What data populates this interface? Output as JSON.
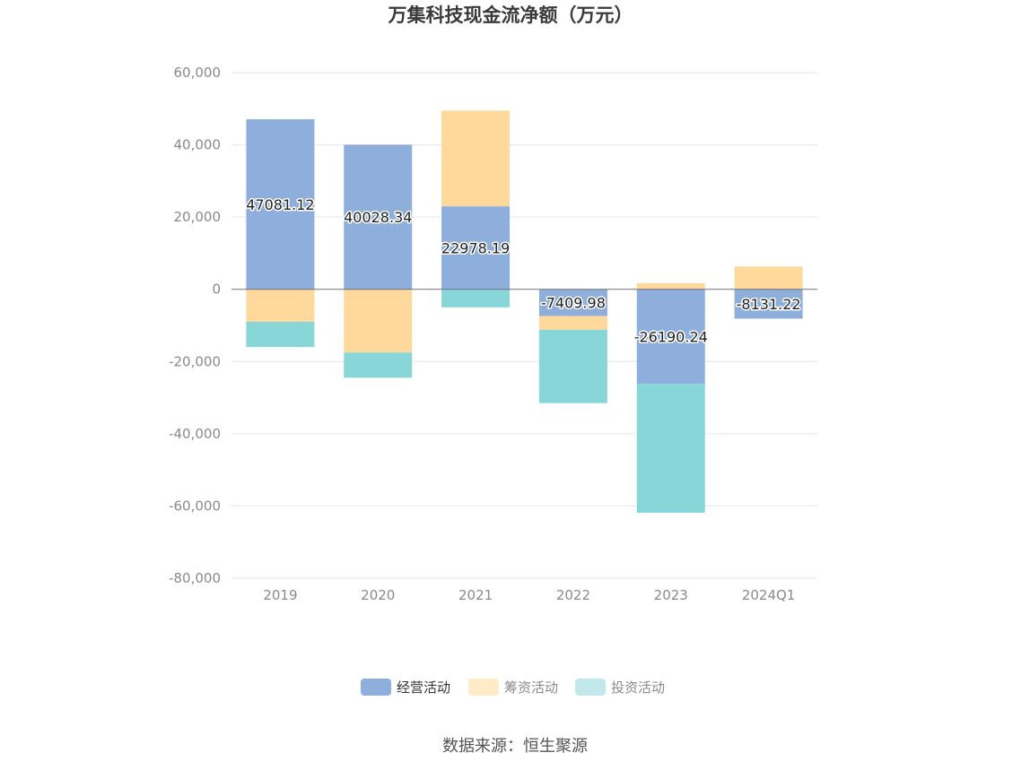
{
  "chart_data": {
    "type": "bar",
    "stacked": true,
    "title": "万集科技现金流净额（万元）",
    "categories": [
      "2019",
      "2020",
      "2021",
      "2022",
      "2023",
      "2024Q1"
    ],
    "ylim": [
      -80000,
      60000
    ],
    "yticks": [
      60000,
      40000,
      20000,
      0,
      -20000,
      -40000,
      -60000,
      -80000
    ],
    "ytick_labels": [
      "60,000",
      "40,000",
      "20,000",
      "0",
      "-20,000",
      "-40,000",
      "-60,000",
      "-80,000"
    ],
    "grid": true,
    "legend": "bottom",
    "series": [
      {
        "name": "经营活动",
        "color": "#8eaedb",
        "values": [
          47081.12,
          40028.34,
          22978.19,
          -7409.98,
          -26190.24,
          -8131.22
        ],
        "data_labels": [
          "47081.12",
          "40028.34",
          "22978.19",
          "-7409.98",
          "-26190.24",
          "-8131.22"
        ]
      },
      {
        "name": "筹资活动",
        "color": "#ffd99b",
        "values": [
          -9000,
          -17500,
          26500,
          -3800,
          1700,
          6300
        ]
      },
      {
        "name": "投资活动",
        "color": "#89d6d9",
        "values": [
          -7000,
          -7000,
          -5000,
          -20300,
          -35700,
          0
        ]
      }
    ],
    "legend_colors": [
      "#8eaedb",
      "#ffebc8",
      "#c1e9eb"
    ],
    "source": "数据来源：恒生聚源"
  }
}
